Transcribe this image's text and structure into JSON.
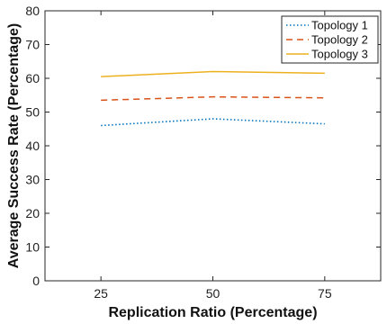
{
  "chart_data": {
    "type": "line",
    "x": [
      25,
      50,
      75
    ],
    "xlim": [
      12.5,
      87.5
    ],
    "ylim": [
      0,
      80
    ],
    "xticks": [
      25,
      50,
      75
    ],
    "yticks": [
      0,
      10,
      20,
      30,
      40,
      50,
      60,
      70,
      80
    ],
    "xlabel": "Replication Ratio (Percentage)",
    "ylabel": "Average Success Rate (Percentage)",
    "grid": false,
    "legend_position": "top-right",
    "series": [
      {
        "name": "Topology 1",
        "values": [
          46,
          48,
          46.5
        ],
        "color": "#0072BD",
        "style": "dotted"
      },
      {
        "name": "Topology 2",
        "values": [
          53.5,
          54.5,
          54.2
        ],
        "color": "#D95319",
        "style": "dashed"
      },
      {
        "name": "Topology 3",
        "values": [
          60.5,
          62,
          61.5
        ],
        "color": "#EDB120",
        "style": "solid"
      }
    ]
  }
}
